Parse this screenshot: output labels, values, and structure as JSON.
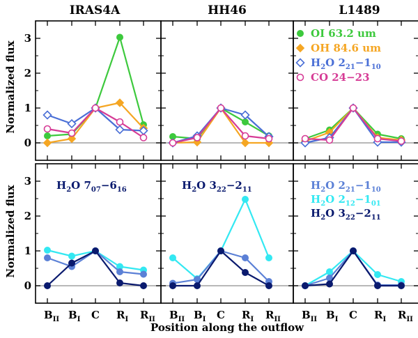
{
  "chart_data": {
    "type": "line",
    "layout": "2x3 panel grid",
    "xlabel": "Position along the outflow",
    "ylabel": "Normalized flux",
    "ylim": [
      -0.5,
      3.5
    ],
    "yticks": [
      "0",
      "1",
      "2",
      "3"
    ],
    "categories": [
      {
        "base": "B",
        "sub": "II"
      },
      {
        "base": "B",
        "sub": "I"
      },
      {
        "base": "C",
        "sub": ""
      },
      {
        "base": "R",
        "sub": "I"
      },
      {
        "base": "R",
        "sub": "II"
      }
    ],
    "columns": [
      "IRAS4A",
      "HH46",
      "L1489"
    ],
    "reference_line": {
      "y": 0,
      "color": "#a0a0a0"
    },
    "top_legend": [
      {
        "key": "oi",
        "parts": [
          {
            "t": "OI 63.2 um"
          }
        ],
        "color": "#3dc93d",
        "marker": "circle-filled"
      },
      {
        "key": "oh",
        "parts": [
          {
            "t": "OH 84.6 um"
          }
        ],
        "color": "#f5a623",
        "marker": "diamond-filled"
      },
      {
        "key": "h2o",
        "parts": [
          {
            "t": "H"
          },
          {
            "t": "2",
            "sub": true
          },
          {
            "t": "O 2"
          },
          {
            "t": "21",
            "sub": true
          },
          {
            "t": "−1"
          },
          {
            "t": "10",
            "sub": true
          }
        ],
        "color": "#4a6fd6",
        "marker": "diamond-open"
      },
      {
        "key": "co",
        "parts": [
          {
            "t": "CO 24−23"
          }
        ],
        "color": "#d63c96",
        "marker": "circle-open"
      }
    ],
    "bottom_legend": [
      {
        "key": "h221",
        "parts": [
          {
            "t": "H"
          },
          {
            "t": "2",
            "sub": true
          },
          {
            "t": "O 2"
          },
          {
            "t": "21",
            "sub": true
          },
          {
            "t": "−1"
          },
          {
            "t": "10",
            "sub": true
          }
        ],
        "color": "#5b80d6"
      },
      {
        "key": "h212",
        "parts": [
          {
            "t": "H"
          },
          {
            "t": "2",
            "sub": true
          },
          {
            "t": "O 2"
          },
          {
            "t": "12",
            "sub": true
          },
          {
            "t": "−1"
          },
          {
            "t": "01",
            "sub": true
          }
        ],
        "color": "#33e8f2"
      },
      {
        "key": "h322",
        "parts": [
          {
            "t": "H"
          },
          {
            "t": "2",
            "sub": true
          },
          {
            "t": "O 3"
          },
          {
            "t": "22",
            "sub": true
          },
          {
            "t": "−2"
          },
          {
            "t": "11",
            "sub": true
          }
        ],
        "color": "#0a1a6e"
      }
    ],
    "panel_labels": [
      {
        "row": 1,
        "col": 0,
        "parts": [
          {
            "t": "H"
          },
          {
            "t": "2",
            "sub": true
          },
          {
            "t": "O 7"
          },
          {
            "t": "07",
            "sub": true
          },
          {
            "t": "−6"
          },
          {
            "t": "16",
            "sub": true
          }
        ],
        "color": "#0a1a6e"
      },
      {
        "row": 1,
        "col": 1,
        "parts": [
          {
            "t": "H"
          },
          {
            "t": "2",
            "sub": true
          },
          {
            "t": "O 3"
          },
          {
            "t": "22",
            "sub": true
          },
          {
            "t": "−2"
          },
          {
            "t": "11",
            "sub": true
          }
        ],
        "color": "#0a1a6e"
      }
    ],
    "panels": [
      {
        "row": 0,
        "col": 0,
        "series": [
          {
            "key": "oi",
            "color": "#3dc93d",
            "marker": "circle-filled",
            "values": [
              0.2,
              0.25,
              1.0,
              3.03,
              0.52
            ]
          },
          {
            "key": "oh",
            "color": "#f5a623",
            "marker": "diamond-filled",
            "values": [
              0.0,
              0.12,
              1.0,
              1.15,
              0.42
            ]
          },
          {
            "key": "h2o",
            "color": "#4a6fd6",
            "marker": "diamond-open",
            "values": [
              0.8,
              0.55,
              1.0,
              0.38,
              0.35
            ]
          },
          {
            "key": "co",
            "color": "#d63c96",
            "marker": "circle-open",
            "values": [
              0.4,
              0.28,
              1.0,
              0.6,
              0.15
            ]
          }
        ]
      },
      {
        "row": 0,
        "col": 1,
        "series": [
          {
            "key": "oi",
            "color": "#3dc93d",
            "marker": "circle-filled",
            "values": [
              0.18,
              0.12,
              1.0,
              0.6,
              0.2
            ]
          },
          {
            "key": "oh",
            "color": "#f5a623",
            "marker": "diamond-filled",
            "values": [
              0.0,
              0.02,
              1.0,
              0.0,
              0.0
            ]
          },
          {
            "key": "h2o",
            "color": "#4a6fd6",
            "marker": "diamond-open",
            "values": [
              0.0,
              0.2,
              1.0,
              0.8,
              0.18
            ]
          },
          {
            "key": "co",
            "color": "#d63c96",
            "marker": "circle-open",
            "values": [
              0.0,
              0.15,
              1.0,
              0.2,
              0.12
            ]
          }
        ]
      },
      {
        "row": 0,
        "col": 2,
        "series": [
          {
            "key": "oi",
            "color": "#3dc93d",
            "marker": "circle-filled",
            "values": [
              0.12,
              0.37,
              1.0,
              0.25,
              0.12
            ]
          },
          {
            "key": "oh",
            "color": "#f5a623",
            "marker": "diamond-filled",
            "values": [
              0.05,
              0.3,
              1.0,
              0.15,
              0.08
            ]
          },
          {
            "key": "h2o",
            "color": "#4a6fd6",
            "marker": "diamond-open",
            "values": [
              0.0,
              0.15,
              1.0,
              0.02,
              0.02
            ]
          },
          {
            "key": "co",
            "color": "#d63c96",
            "marker": "circle-open",
            "values": [
              0.12,
              0.08,
              1.0,
              0.12,
              0.05
            ]
          }
        ]
      },
      {
        "row": 1,
        "col": 0,
        "series": [
          {
            "key": "h212",
            "color": "#33e8f2",
            "marker": "circle-filled",
            "values": [
              1.02,
              0.85,
              1.0,
              0.55,
              0.45
            ]
          },
          {
            "key": "h221",
            "color": "#5b80d6",
            "marker": "circle-filled",
            "values": [
              0.8,
              0.55,
              1.0,
              0.4,
              0.33
            ]
          },
          {
            "key": "h322",
            "color": "#0a1a6e",
            "marker": "circle-filled",
            "values": [
              0.0,
              0.65,
              1.0,
              0.08,
              0.0
            ]
          }
        ]
      },
      {
        "row": 1,
        "col": 1,
        "series": [
          {
            "key": "h212",
            "color": "#33e8f2",
            "marker": "circle-filled",
            "values": [
              0.8,
              0.2,
              1.0,
              2.48,
              0.8
            ]
          },
          {
            "key": "h221",
            "color": "#5b80d6",
            "marker": "circle-filled",
            "values": [
              0.07,
              0.18,
              1.0,
              0.8,
              0.12
            ]
          },
          {
            "key": "h322",
            "color": "#0a1a6e",
            "marker": "circle-filled",
            "values": [
              0.0,
              0.0,
              1.0,
              0.38,
              0.0
            ]
          }
        ]
      },
      {
        "row": 1,
        "col": 2,
        "series": [
          {
            "key": "h212",
            "color": "#33e8f2",
            "marker": "circle-filled",
            "values": [
              0.0,
              0.4,
              1.0,
              0.32,
              0.12
            ]
          },
          {
            "key": "h221",
            "color": "#5b80d6",
            "marker": "circle-filled",
            "values": [
              0.0,
              0.22,
              1.0,
              0.02,
              0.02
            ]
          },
          {
            "key": "h322",
            "color": "#0a1a6e",
            "marker": "circle-filled",
            "values": [
              0.0,
              0.05,
              1.0,
              0.0,
              0.0
            ]
          }
        ]
      }
    ]
  }
}
